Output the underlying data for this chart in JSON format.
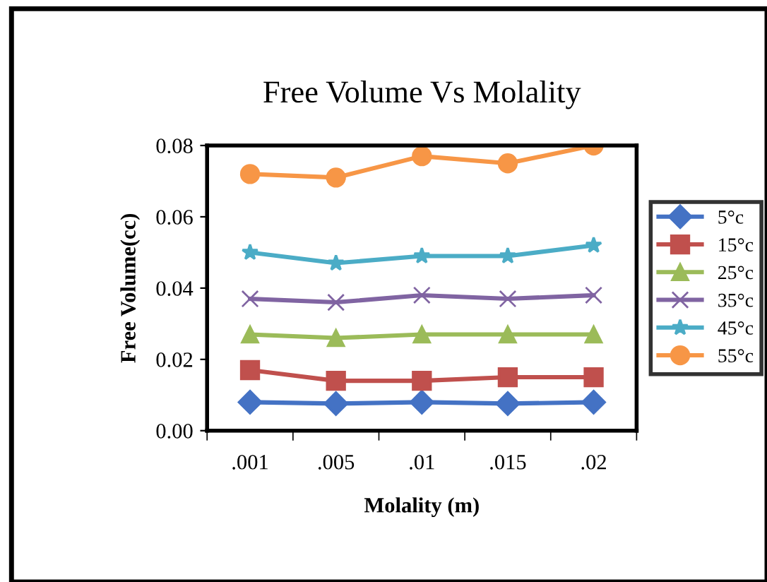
{
  "chart_data": {
    "type": "line",
    "title": "Free Volume Vs Molality",
    "xlabel": "Molality (m)",
    "ylabel": "Free Volume(cc)",
    "categories": [
      ".001",
      ".005",
      ".01",
      ".015",
      ".02"
    ],
    "ylim": [
      0,
      0.08
    ],
    "yticks": [
      {
        "value": 0,
        "label": "0.00"
      },
      {
        "value": 0.02,
        "label": "0.02"
      },
      {
        "value": 0.04,
        "label": "0.04"
      },
      {
        "value": 0.06,
        "label": "0.06"
      },
      {
        "value": 0.08,
        "label": "0.08"
      }
    ],
    "grid": false,
    "legend": "right",
    "series": [
      {
        "name": "5°c",
        "color": "#4472c4",
        "marker": "diamond",
        "values": [
          0.008,
          0.0076,
          0.008,
          0.0076,
          0.008
        ]
      },
      {
        "name": "15°c",
        "color": "#c0504d",
        "marker": "square",
        "values": [
          0.017,
          0.014,
          0.014,
          0.015,
          0.015
        ]
      },
      {
        "name": "25°c",
        "color": "#9bbb59",
        "marker": "triangle",
        "values": [
          0.027,
          0.026,
          0.027,
          0.027,
          0.027
        ]
      },
      {
        "name": "35°c",
        "color": "#8064a2",
        "marker": "cross",
        "values": [
          0.037,
          0.036,
          0.038,
          0.037,
          0.038
        ]
      },
      {
        "name": "45°c",
        "color": "#4bacc6",
        "marker": "star",
        "values": [
          0.05,
          0.047,
          0.049,
          0.049,
          0.052
        ]
      },
      {
        "name": "55°c",
        "color": "#f79646",
        "marker": "circle",
        "values": [
          0.072,
          0.071,
          0.077,
          0.075,
          0.08
        ]
      }
    ]
  }
}
